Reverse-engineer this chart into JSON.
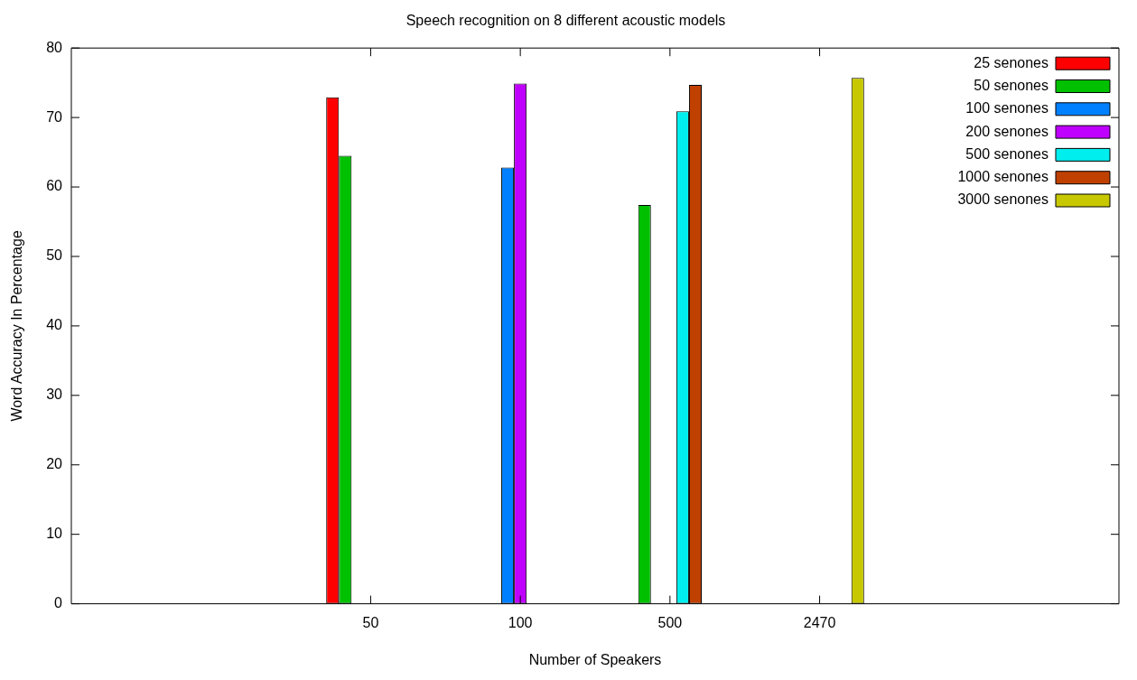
{
  "chart_data": {
    "type": "bar",
    "title": "Speech recognition on 8 different acoustic models",
    "xlabel": "Number of Speakers",
    "ylabel": "Word Accuracy In Percentage",
    "categories": [
      null,
      null,
      "50",
      "100",
      "500",
      "2470",
      null,
      null
    ],
    "series": [
      {
        "name": "25 senones",
        "color": "#ff0000",
        "values": [
          null,
          null,
          72.9,
          0,
          0,
          0,
          null,
          null
        ]
      },
      {
        "name": "50 senones",
        "color": "#00c000",
        "values": [
          null,
          null,
          64.5,
          0,
          57.4,
          0,
          null,
          null
        ]
      },
      {
        "name": "100 senones",
        "color": "#0080ff",
        "values": [
          null,
          null,
          0,
          62.8,
          0,
          0,
          null,
          null
        ]
      },
      {
        "name": "200 senones",
        "color": "#c000ff",
        "values": [
          null,
          null,
          0,
          74.9,
          0,
          0,
          null,
          null
        ]
      },
      {
        "name": "500 senones",
        "color": "#00eeee",
        "values": [
          null,
          null,
          0,
          0,
          70.9,
          0,
          null,
          null
        ]
      },
      {
        "name": "1000 senones",
        "color": "#c04000",
        "values": [
          null,
          null,
          0,
          0,
          74.7,
          0,
          null,
          null
        ]
      },
      {
        "name": "3000 senones",
        "color": "#c8c800",
        "values": [
          null,
          null,
          0,
          0,
          0,
          75.7,
          null,
          null
        ]
      }
    ],
    "ylim": [
      0,
      80
    ],
    "yticks": [
      0,
      10,
      20,
      30,
      40,
      50,
      60,
      70,
      80
    ],
    "grid": false,
    "legend": "top right"
  }
}
